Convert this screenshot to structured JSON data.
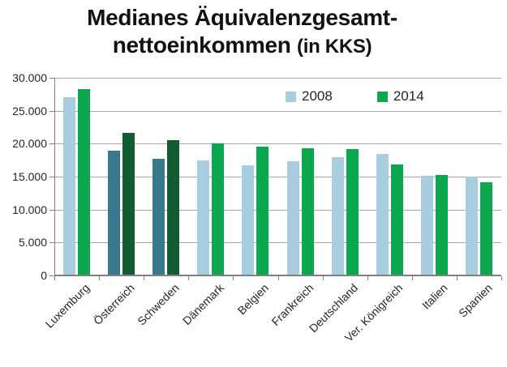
{
  "title": {
    "line1": "Medianes Äquivalenzgesamt-",
    "line2_main": "nettoeinkommen",
    "line2_suffix": "(in KKS)"
  },
  "colors": {
    "series_2008": "#A8CDDE",
    "series_2014": "#0CA84F",
    "series_2008_highlight": "#39798E",
    "series_2014_highlight": "#135C31",
    "gridline": "#A6A6A6",
    "axis": "#808080",
    "text": "#262626",
    "title_text": "#121212"
  },
  "chart_data": {
    "type": "bar",
    "title": "Medianes Äquivalenzgesamt-nettoeinkommen (in KKS)",
    "xlabel": "",
    "ylabel": "",
    "categories": [
      "Luxemburg",
      "Österreich",
      "Schweden",
      "Dänemark",
      "Belgien",
      "Frankreich",
      "Deutschland",
      "Ver. Königreich",
      "Italien",
      "Spanien"
    ],
    "series": [
      {
        "name": "2008",
        "values": [
          27000,
          18900,
          17700,
          17500,
          16700,
          17400,
          18000,
          18500,
          15100,
          15000
        ],
        "color": "#A8CDDE",
        "highlight_color": "#39798E"
      },
      {
        "name": "2014",
        "values": [
          28300,
          21600,
          20600,
          20000,
          19600,
          19300,
          19200,
          16900,
          15300,
          14200
        ],
        "color": "#0CA84F",
        "highlight_color": "#135C31"
      }
    ],
    "highlighted_categories": [
      "Österreich",
      "Schweden"
    ],
    "ylim": [
      0,
      30000
    ],
    "ytick_step": 5000,
    "ytick_labels": [
      "0",
      "5.000",
      "10.000",
      "15.000",
      "20.000",
      "25.000",
      "30.000"
    ],
    "grid": true,
    "legend_position": "top-right-inside",
    "legend_labels": [
      "2008",
      "2014"
    ]
  }
}
